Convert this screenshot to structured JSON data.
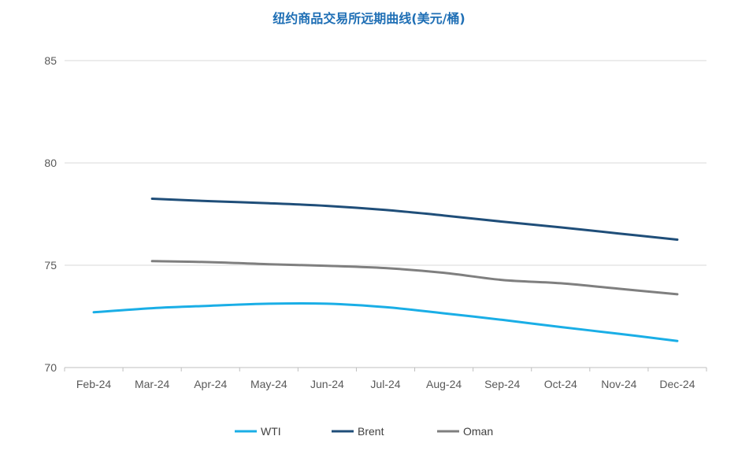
{
  "chart_data": {
    "type": "line",
    "title": "纽约商品交易所远期曲线(美元/桶)",
    "xlabel": "",
    "ylabel": "",
    "categories": [
      "Feb-24",
      "Mar-24",
      "Apr-24",
      "May-24",
      "Jun-24",
      "Jul-24",
      "Aug-24",
      "Sep-24",
      "Oct-24",
      "Nov-24",
      "Dec-24"
    ],
    "ylim": [
      70,
      85
    ],
    "yticks": [
      70,
      75,
      80,
      85
    ],
    "grid": "horizontal",
    "legend_position": "bottom",
    "series": [
      {
        "name": "WTI",
        "color": "#1aaee6",
        "values": [
          72.7,
          72.9,
          73.02,
          73.12,
          73.12,
          72.95,
          72.65,
          72.33,
          71.98,
          71.65,
          71.3
        ]
      },
      {
        "name": "Brent",
        "color": "#1f4e79",
        "values": [
          null,
          78.25,
          78.13,
          78.03,
          77.9,
          77.7,
          77.43,
          77.13,
          76.85,
          76.55,
          76.25
        ]
      },
      {
        "name": "Oman",
        "color": "#7f7f7f",
        "values": [
          null,
          75.2,
          75.15,
          75.05,
          74.97,
          74.86,
          74.63,
          74.28,
          74.12,
          73.85,
          73.58
        ]
      }
    ]
  }
}
